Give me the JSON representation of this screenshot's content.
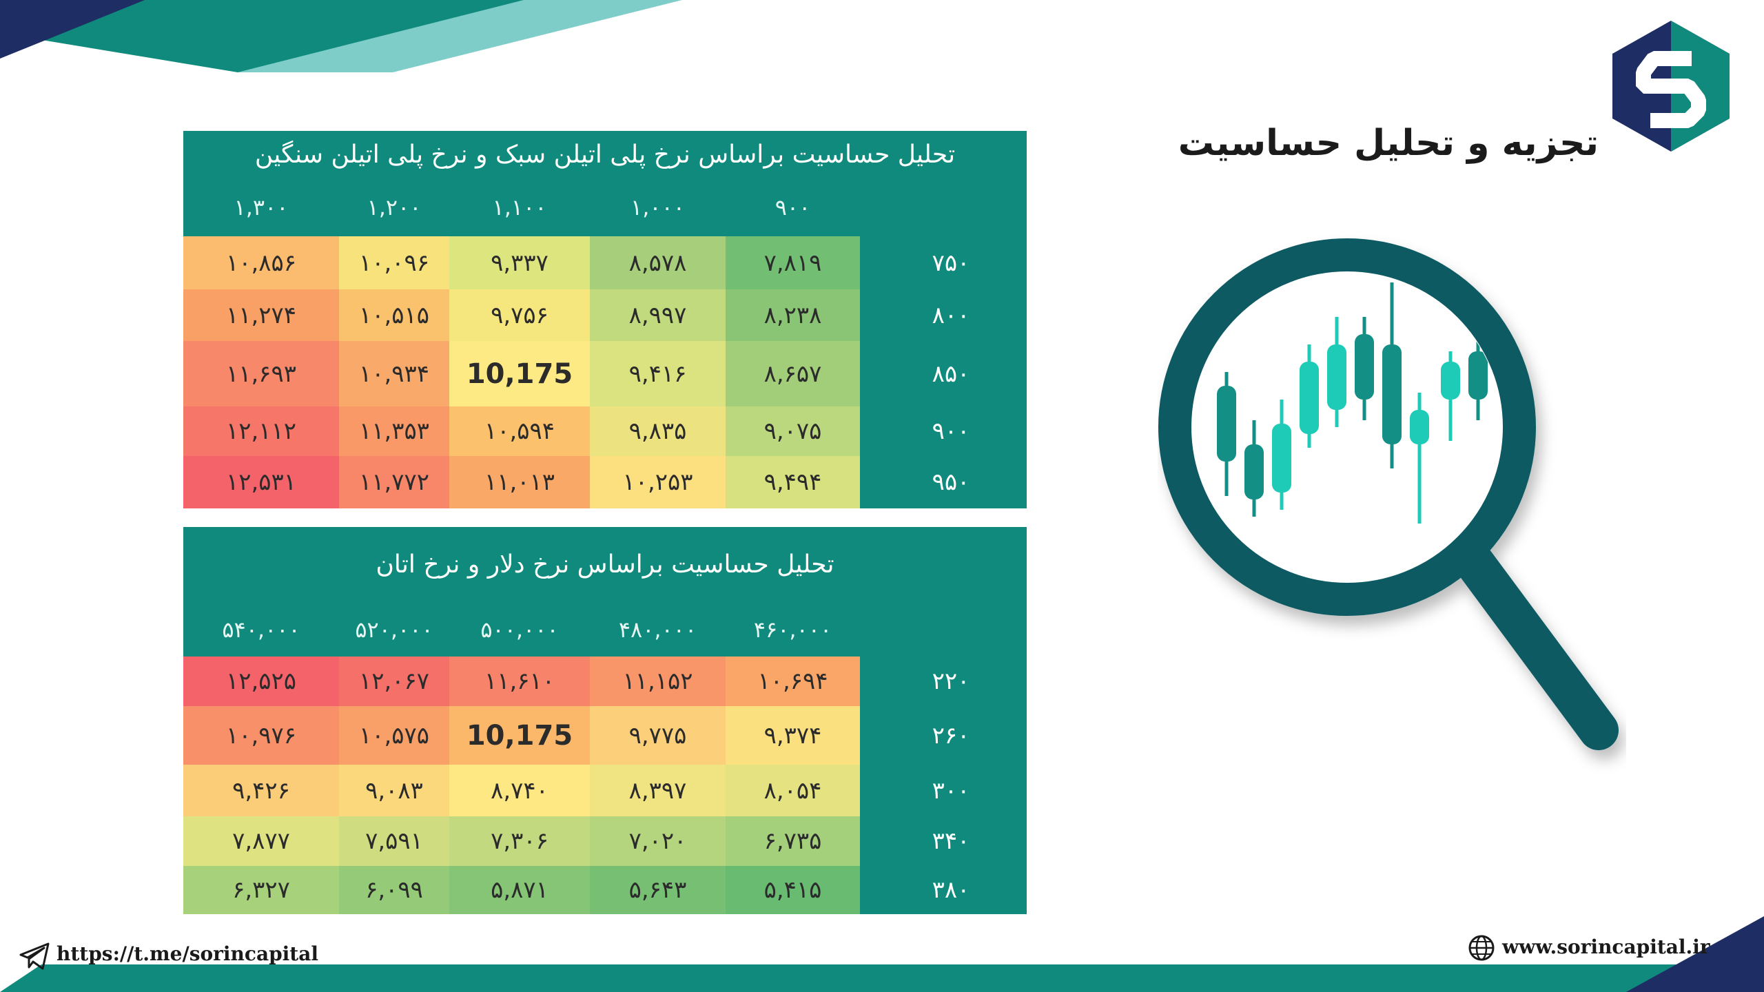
{
  "title": "تجزیه و تحلیل حساسیت",
  "colors": {
    "panel": "#0f8a7d",
    "teal_dark": "#0b5a63",
    "navy": "#1e2d63",
    "teal_light": "#7fcdc9",
    "candle_green": "#1ecbb7",
    "candle_dark": "#148f86"
  },
  "table1": {
    "title": "تحلیل حساسیت براساس نرخ پلی اتیلن سبک و نرخ پلی اتیلن سنگین",
    "columns": [
      "۱,۳۰۰",
      "۱,۲۰۰",
      "۱,۱۰۰",
      "۱,۰۰۰",
      "۹۰۰"
    ],
    "rows": [
      {
        "label": "۷۵۰",
        "cells": [
          "۱۰,۸۵۶",
          "۱۰,۰۹۶",
          "۹,۳۳۷",
          "۸,۵۷۸",
          "۷,۸۱۹"
        ]
      },
      {
        "label": "۸۰۰",
        "cells": [
          "۱۱,۲۷۴",
          "۱۰,۵۱۵",
          "۹,۷۵۶",
          "۸,۹۹۷",
          "۸,۲۳۸"
        ]
      },
      {
        "label": "۸۵۰",
        "cells": [
          "۱۱,۶۹۳",
          "۱۰,۹۳۴",
          "10,175",
          "۹,۴۱۶",
          "۸,۶۵۷"
        ]
      },
      {
        "label": "۹۰۰",
        "cells": [
          "۱۲,۱۱۲",
          "۱۱,۳۵۳",
          "۱۰,۵۹۴",
          "۹,۸۳۵",
          "۹,۰۷۵"
        ]
      },
      {
        "label": "۹۵۰",
        "cells": [
          "۱۲,۵۳۱",
          "۱۱,۷۷۲",
          "۱۱,۰۱۳",
          "۱۰,۲۵۳",
          "۹,۴۹۴"
        ]
      }
    ],
    "colors": [
      [
        "#fbbc70",
        "#f7e27c",
        "#dde57f",
        "#a7cf7b",
        "#72bf73"
      ],
      [
        "#f9a066",
        "#fbc26d",
        "#f5e77e",
        "#c2da7e",
        "#89c574"
      ],
      [
        "#f8886a",
        "#f9a969",
        "#fdea84",
        "#dbe380",
        "#a2cd79"
      ],
      [
        "#f7766a",
        "#f99968",
        "#fbc16c",
        "#ece27f",
        "#bcd87e"
      ],
      [
        "#f5636a",
        "#f8876a",
        "#faa868",
        "#fcdf7f",
        "#d8e180"
      ]
    ]
  },
  "table2": {
    "title": "تحلیل حساسیت براساس نرخ دلار و نرخ اتان",
    "columns": [
      "۵۴۰,۰۰۰",
      "۵۲۰,۰۰۰",
      "۵۰۰,۰۰۰",
      "۴۸۰,۰۰۰",
      "۴۶۰,۰۰۰"
    ],
    "rows": [
      {
        "label": "۲۲۰",
        "cells": [
          "۱۲,۵۲۵",
          "۱۲,۰۶۷",
          "۱۱,۶۱۰",
          "۱۱,۱۵۲",
          "۱۰,۶۹۴"
        ]
      },
      {
        "label": "۲۶۰",
        "cells": [
          "۱۰,۹۷۶",
          "۱۰,۵۷۵",
          "10,175",
          "۹,۷۷۵",
          "۹,۳۷۴"
        ]
      },
      {
        "label": "۳۰۰",
        "cells": [
          "۹,۴۲۶",
          "۹,۰۸۳",
          "۸,۷۴۰",
          "۸,۳۹۷",
          "۸,۰۵۴"
        ]
      },
      {
        "label": "۳۴۰",
        "cells": [
          "۷,۸۷۷",
          "۷,۵۹۱",
          "۷,۳۰۶",
          "۷,۰۲۰",
          "۶,۷۳۵"
        ]
      },
      {
        "label": "۳۸۰",
        "cells": [
          "۶,۳۲۷",
          "۶,۰۹۹",
          "۵,۸۷۱",
          "۵,۶۴۳",
          "۵,۴۱۵"
        ]
      }
    ],
    "colors": [
      [
        "#f5636a",
        "#f6706a",
        "#f7836a",
        "#f8966a",
        "#f9a668"
      ],
      [
        "#f8906a",
        "#f99f68",
        "#fbb86b",
        "#fcd07a",
        "#fbe07f"
      ],
      [
        "#fbcd78",
        "#fcd87c",
        "#fde883",
        "#f0e482",
        "#e5e282"
      ],
      [
        "#dfe281",
        "#cfdc80",
        "#c3d97f",
        "#b4d47d",
        "#a4cf7b"
      ],
      [
        "#a8d17b",
        "#95ca78",
        "#86c576",
        "#77c073",
        "#68bb71"
      ]
    ]
  },
  "footer": {
    "telegram": "https://t.me/sorincapital",
    "website": "www.sorincapital.ir"
  }
}
